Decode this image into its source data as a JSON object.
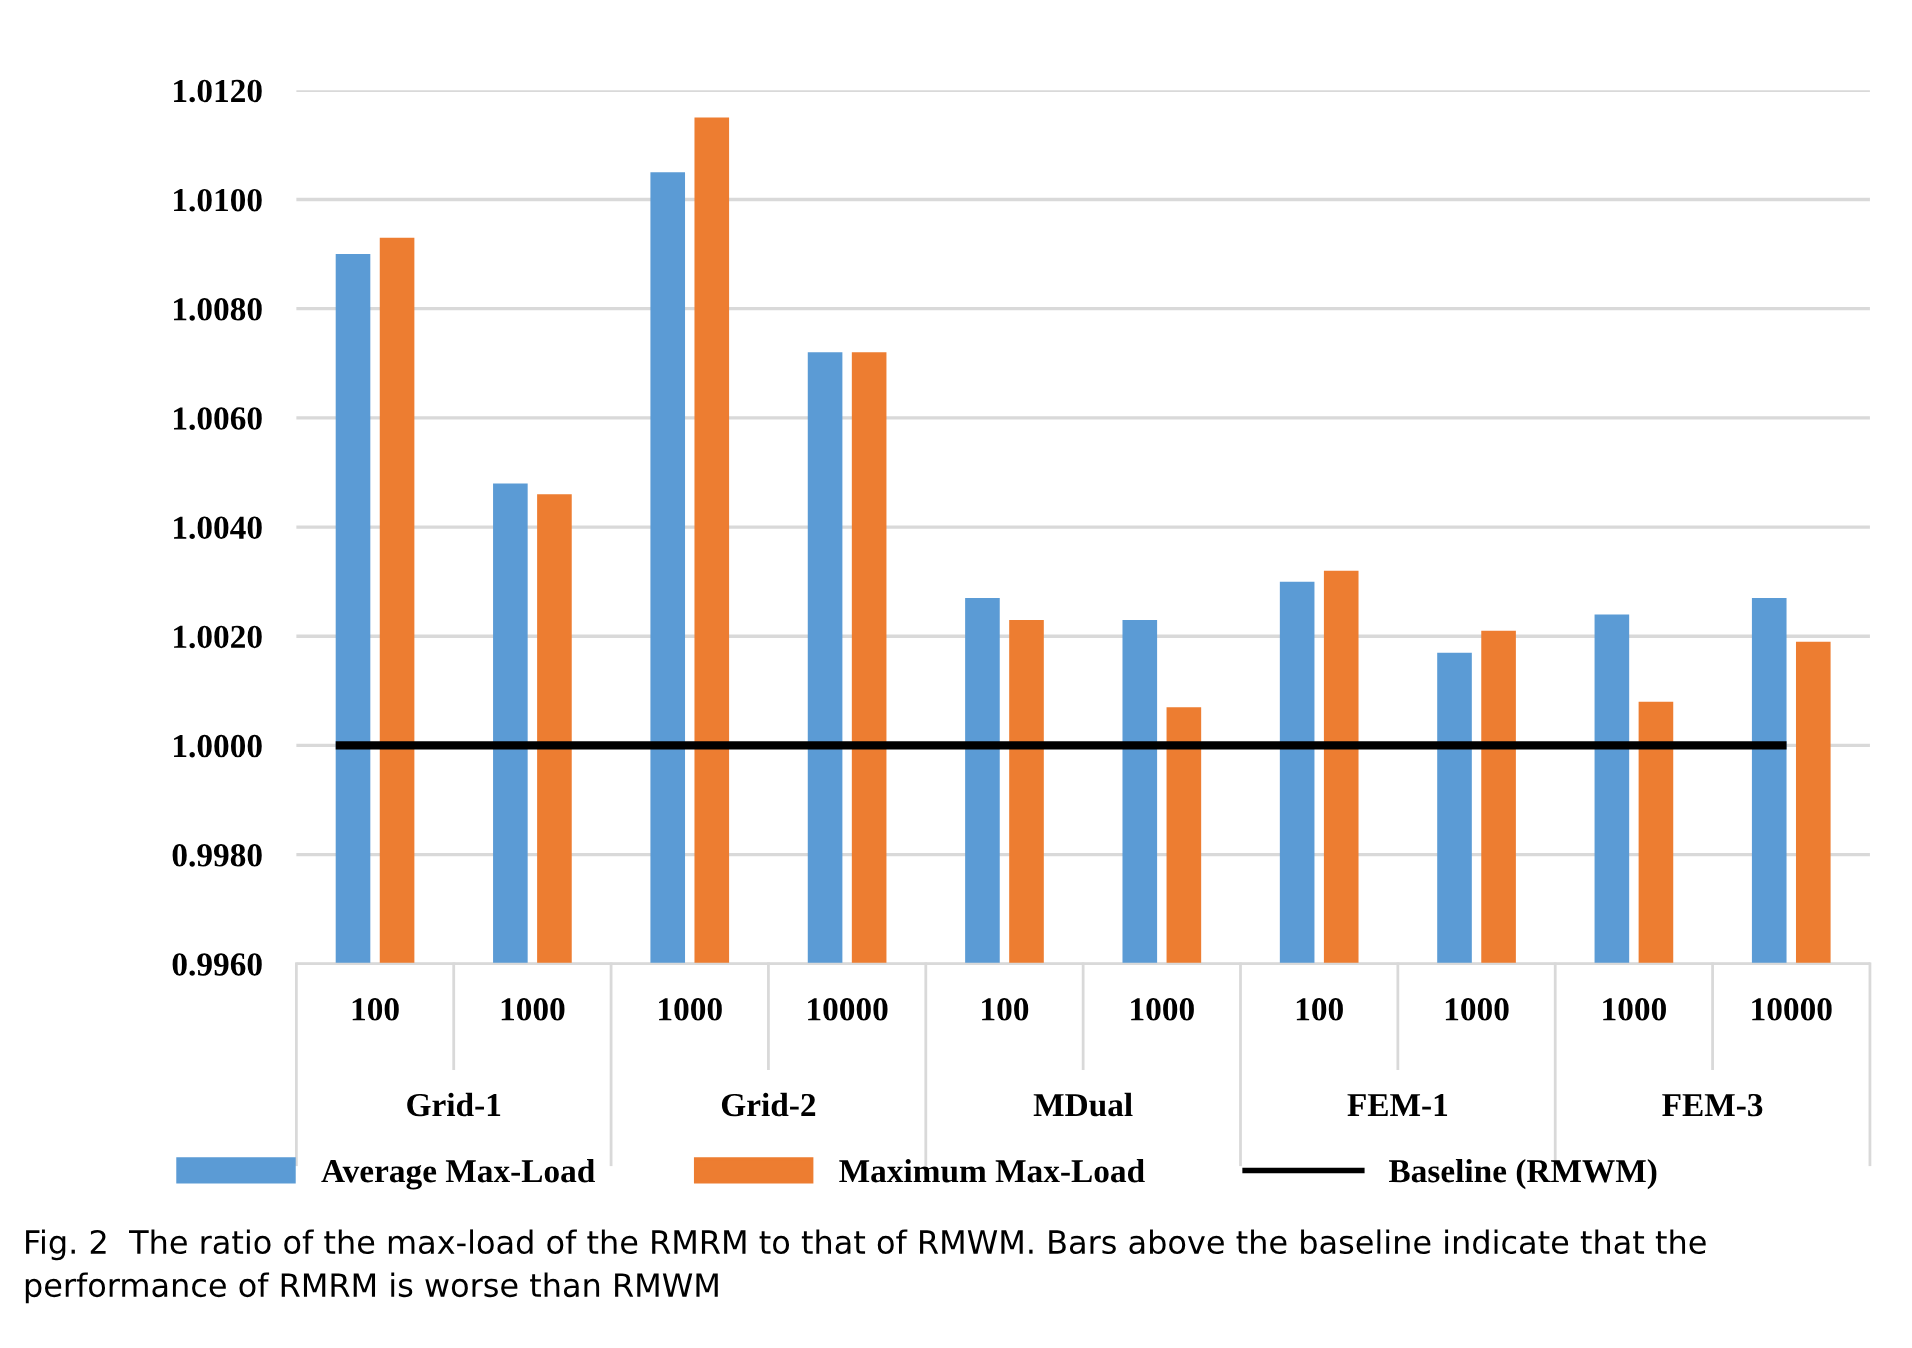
{
  "chart_data": {
    "type": "bar",
    "categories": [
      "100",
      "1000",
      "1000",
      "10000",
      "100",
      "1000",
      "100",
      "1000",
      "1000",
      "10000"
    ],
    "series": [
      {
        "name": "Average Max-Load",
        "color": "#5b9bd5",
        "values": [
          1.009,
          1.0048,
          1.0105,
          1.0072,
          1.0027,
          1.0023,
          1.003,
          1.0017,
          1.0024,
          1.0027
        ]
      },
      {
        "name": "Maximum Max-Load",
        "color": "#ed7d31",
        "values": [
          1.0093,
          1.0046,
          1.0115,
          1.0072,
          1.0023,
          1.0007,
          1.0032,
          1.0021,
          1.0008,
          1.0019
        ]
      }
    ],
    "ylim": [
      0.996,
      1.012
    ],
    "yticks": [
      {
        "value": 0.996,
        "label": "0.9960"
      },
      {
        "value": 0.998,
        "label": "0.9980"
      },
      {
        "value": 1.0,
        "label": "1.0000"
      },
      {
        "value": 1.002,
        "label": "1.0020"
      },
      {
        "value": 1.004,
        "label": "1.0040"
      },
      {
        "value": 1.006,
        "label": "1.0060"
      },
      {
        "value": 1.008,
        "label": "1.0080"
      },
      {
        "value": 1.01,
        "label": "1.0100"
      },
      {
        "value": 1.012,
        "label": "1.0120"
      }
    ],
    "ref_lines": [
      {
        "axis": "y",
        "value": 1.0,
        "label": "Baseline (RMWM)",
        "color": "#000000",
        "line_style": "solid"
      }
    ],
    "annotations": [
      "Grid-1",
      "Grid-2",
      "MDual",
      "FEM-1",
      "FEM-3",
      "Fig. 2  The ratio of the max-load of the RMRM to that of RMWM. Bars above the baseline indicate that the performance of RMRM is worse than RMWM"
    ],
    "grid": "y",
    "legend": "bottom"
  }
}
